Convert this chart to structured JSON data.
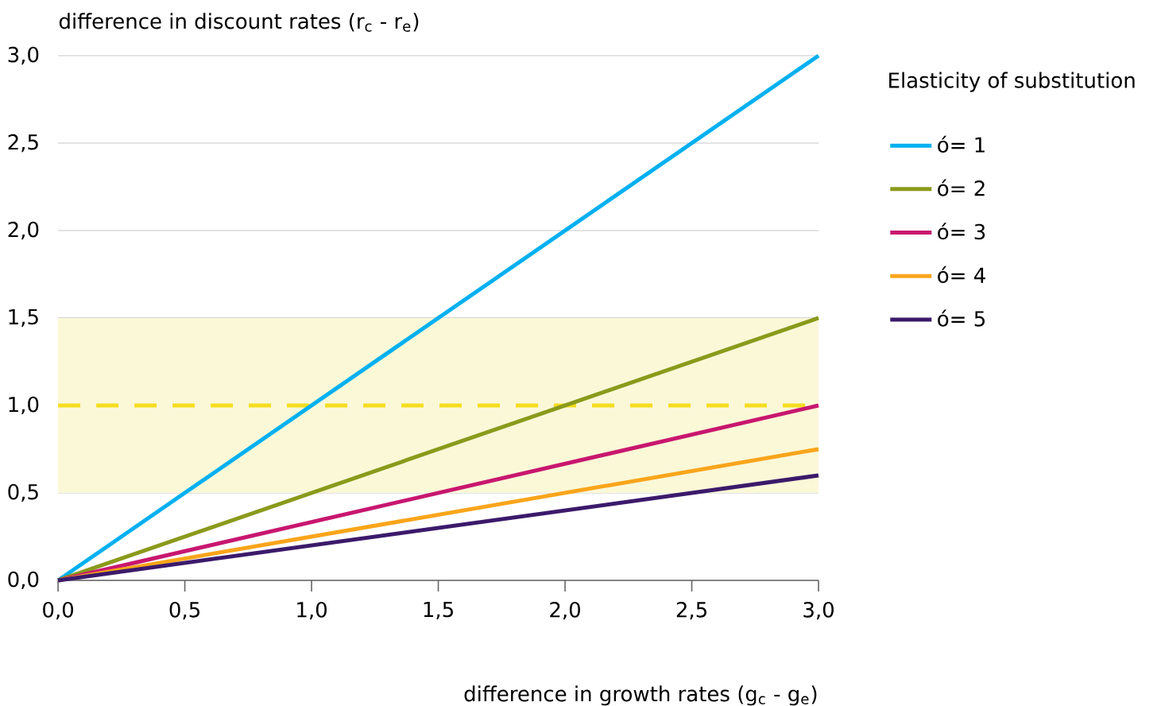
{
  "chart_data": {
    "type": "line",
    "xlabel": "difference in growth rates (g$_{c}$ - g$_{e}$)",
    "ylabel": "difference in discount rates (r$_{c}$ - r$_{e}$)",
    "legend_title": "Elasticity of substitution",
    "x": [
      0,
      3
    ],
    "series": [
      {
        "name": "ó= 1",
        "color": "#00b0f0",
        "values": [
          0,
          3
        ]
      },
      {
        "name": "ó= 2",
        "color": "#8a9a1b",
        "values": [
          0,
          1.5
        ]
      },
      {
        "name": "ó= 3",
        "color": "#c8176f",
        "values": [
          0,
          1
        ]
      },
      {
        "name": "ó= 4",
        "color": "#f9a51b",
        "values": [
          0,
          0.75
        ]
      },
      {
        "name": "ó= 5",
        "color": "#3b1a6b",
        "values": [
          0,
          0.6
        ]
      }
    ],
    "xlim": [
      0,
      3
    ],
    "ylim": [
      0,
      3
    ],
    "xticks": [
      {
        "value": 0,
        "label": "0,0"
      },
      {
        "value": 0.5,
        "label": "0,5"
      },
      {
        "value": 1,
        "label": "1,0"
      },
      {
        "value": 1.5,
        "label": "1,5"
      },
      {
        "value": 2,
        "label": "2,0"
      },
      {
        "value": 2.5,
        "label": "2,5"
      },
      {
        "value": 3,
        "label": "3,0"
      }
    ],
    "yticks": [
      {
        "value": 0,
        "label": "0,0"
      },
      {
        "value": 0.5,
        "label": "0,5"
      },
      {
        "value": 1,
        "label": "1,0"
      },
      {
        "value": 1.5,
        "label": "1,5"
      },
      {
        "value": 2,
        "label": "2,0"
      },
      {
        "value": 2.5,
        "label": "2,5"
      },
      {
        "value": 3,
        "label": "3,0"
      }
    ],
    "bands": [
      {
        "axis": "y",
        "from": 0.5,
        "to": 1.5,
        "color": "#fbf8d8"
      }
    ],
    "ref_lines": [
      {
        "axis": "y",
        "value": 1,
        "color": "#f5dd20",
        "line_style": "dashed"
      }
    ],
    "grid": "y",
    "legend": "right",
    "line_style": "solid",
    "marker": "none"
  }
}
